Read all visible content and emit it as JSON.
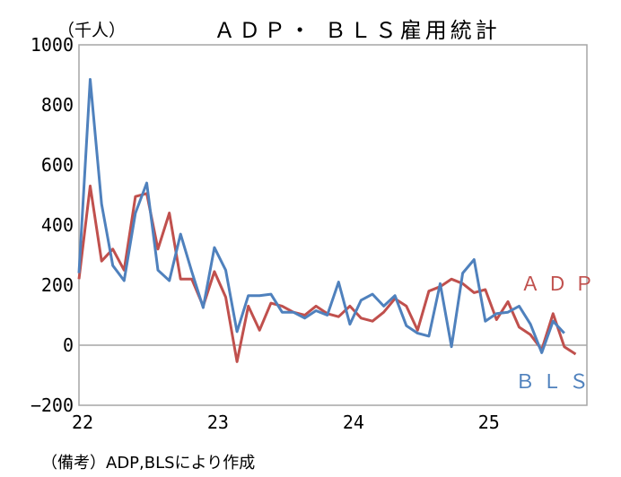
{
  "chart_data": {
    "type": "line",
    "title": "ＡＤＰ・ ＢＬＳ雇用統計",
    "unit_label": "（千人）",
    "note": "（備考）ADP,BLSにより作成",
    "ylim": [
      -200,
      1000
    ],
    "yticks": [
      -200,
      0,
      200,
      400,
      600,
      800,
      1000
    ],
    "xlim": [
      2022.0,
      2025.75
    ],
    "xticks": [
      {
        "value": 2022.0,
        "label": "22"
      },
      {
        "value": 2023.0,
        "label": "23"
      },
      {
        "value": 2024.0,
        "label": "24"
      },
      {
        "value": 2025.0,
        "label": "25"
      }
    ],
    "grid": false,
    "colors": {
      "ADP": "#c0504d",
      "BLS": "#4f81bd",
      "zero_line": "#a6a6a6",
      "frame": "#a6a6a6"
    },
    "series": [
      {
        "name": "ADP",
        "label": "ＡＤＰ",
        "x": [
          2022.0,
          2022.083,
          2022.167,
          2022.25,
          2022.333,
          2022.417,
          2022.5,
          2022.583,
          2022.667,
          2022.75,
          2022.833,
          2022.917,
          2023.0,
          2023.083,
          2023.167,
          2023.25,
          2023.333,
          2023.417,
          2023.5,
          2023.583,
          2023.667,
          2023.75,
          2023.833,
          2023.917,
          2024.0,
          2024.083,
          2024.167,
          2024.25,
          2024.333,
          2024.417,
          2024.5,
          2024.583,
          2024.667,
          2024.75,
          2024.833,
          2024.917,
          2025.0,
          2025.083,
          2025.167,
          2025.25,
          2025.333,
          2025.417,
          2025.5,
          2025.583,
          2025.667
        ],
        "values": [
          220,
          530,
          280,
          320,
          250,
          495,
          505,
          320,
          440,
          220,
          220,
          130,
          245,
          160,
          -55,
          130,
          50,
          140,
          130,
          110,
          100,
          130,
          105,
          95,
          130,
          90,
          80,
          110,
          155,
          130,
          50,
          180,
          195,
          220,
          205,
          175,
          185,
          85,
          145,
          60,
          35,
          -15,
          105,
          -5,
          -30
        ]
      },
      {
        "name": "BLS",
        "label": "ＢＬＳ",
        "x": [
          2022.0,
          2022.083,
          2022.167,
          2022.25,
          2022.333,
          2022.417,
          2022.5,
          2022.583,
          2022.667,
          2022.75,
          2022.833,
          2022.917,
          2023.0,
          2023.083,
          2023.167,
          2023.25,
          2023.333,
          2023.417,
          2023.5,
          2023.583,
          2023.667,
          2023.75,
          2023.833,
          2023.917,
          2024.0,
          2024.083,
          2024.167,
          2024.25,
          2024.333,
          2024.417,
          2024.5,
          2024.583,
          2024.667,
          2024.75,
          2024.833,
          2024.917,
          2025.0,
          2025.083,
          2025.167,
          2025.25,
          2025.333,
          2025.417,
          2025.5,
          2025.583
        ],
        "values": [
          240,
          885,
          470,
          265,
          215,
          440,
          540,
          250,
          215,
          370,
          245,
          125,
          325,
          250,
          45,
          165,
          165,
          170,
          110,
          110,
          90,
          115,
          100,
          210,
          70,
          150,
          170,
          130,
          165,
          65,
          40,
          30,
          205,
          -5,
          240,
          285,
          80,
          105,
          110,
          130,
          70,
          -25,
          80,
          40
        ]
      }
    ]
  }
}
